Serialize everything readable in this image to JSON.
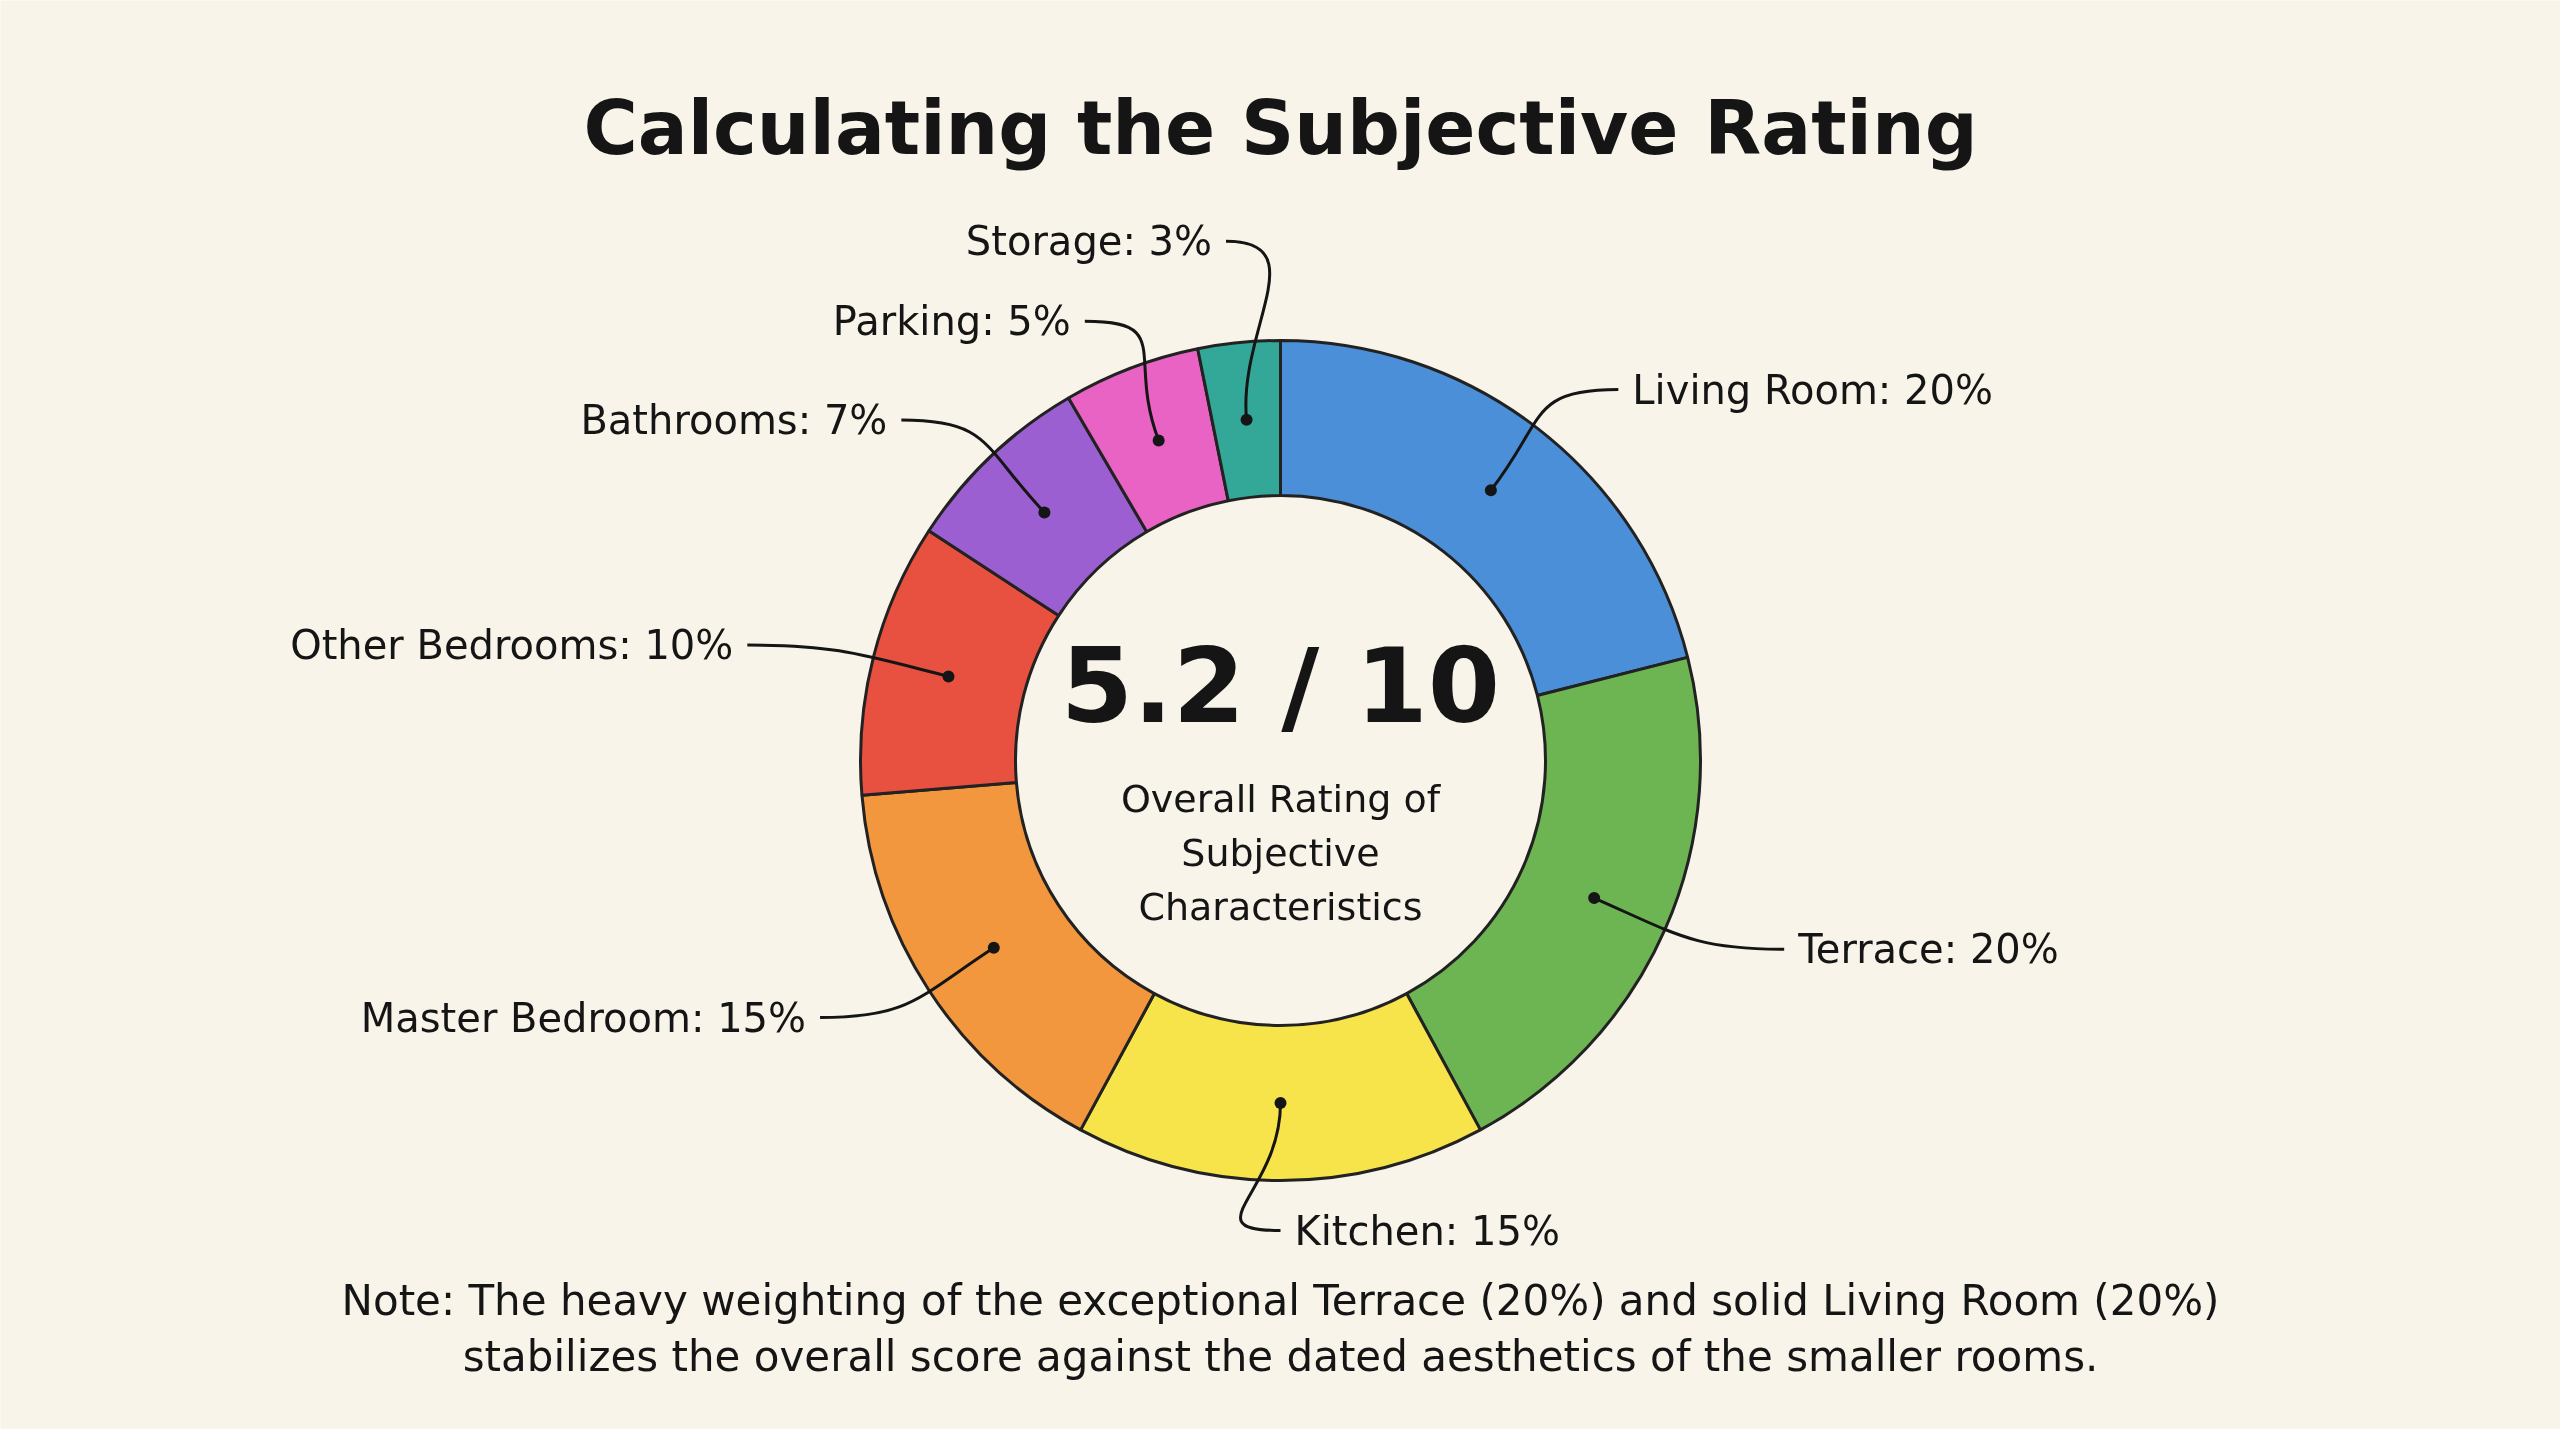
{
  "chart_data": {
    "type": "donut",
    "title": "Calculating the Subjective Rating",
    "categories": [
      "Living Room",
      "Terrace",
      "Kitchen",
      "Master Bedroom",
      "Other Bedrooms",
      "Bathrooms",
      "Parking",
      "Storage"
    ],
    "values": [
      20,
      20,
      15,
      15,
      10,
      7,
      5,
      3
    ],
    "value_labels": [
      "20%",
      "20%",
      "15%",
      "15%",
      "10%",
      "7%",
      "5%",
      "3%"
    ],
    "colors": [
      "#4a8fd8",
      "#6db552",
      "#f6e44a",
      "#f2973e",
      "#e8503f",
      "#9b5fd2",
      "#e863c4",
      "#34a898"
    ],
    "annotations": [
      "5.2 / 10",
      "Overall Rating of Subjective Characteristics",
      "Note: The heavy weighting of the exceptional Terrace (20%) and solid Living Room (20%) stabilizes the overall score against the dated aesthetics of the smaller rooms."
    ]
  }
}
